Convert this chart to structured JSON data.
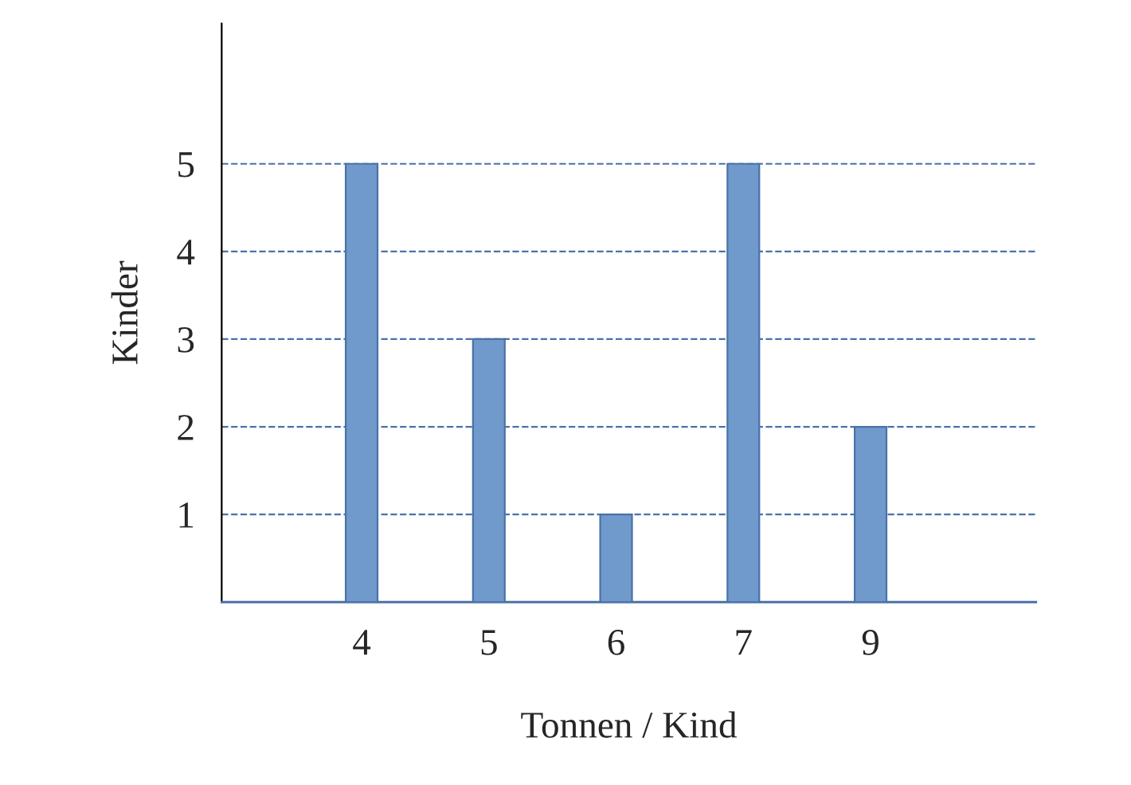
{
  "chart_data": {
    "type": "bar",
    "xlabel": "Tonnen / Kind",
    "ylabel": "Kinder",
    "categories": [
      "4",
      "5",
      "6",
      "7",
      "9"
    ],
    "values": [
      5,
      3,
      1,
      5,
      2
    ],
    "color": "#7099cc",
    "ylim": [
      0,
      6.6
    ],
    "yticks": [
      1,
      2,
      3,
      4,
      5
    ],
    "grid": "y",
    "line_style": "dashed"
  }
}
